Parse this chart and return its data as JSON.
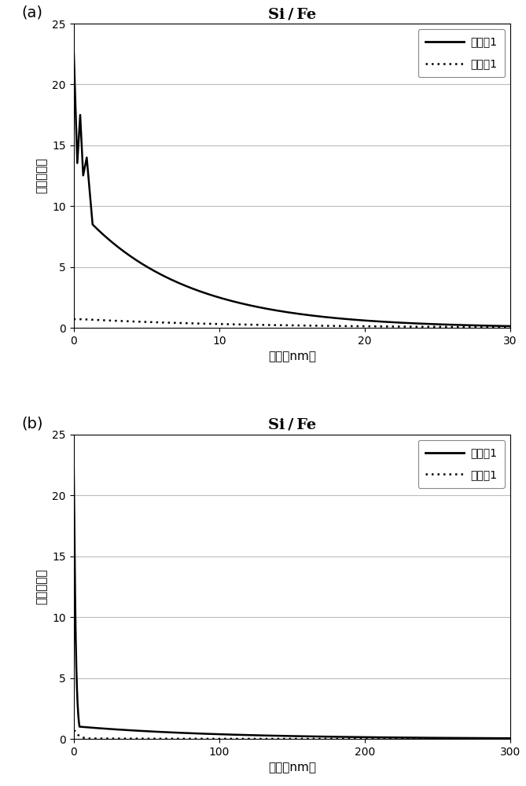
{
  "title": "Si / Fe",
  "ylabel": "原子浓度比",
  "xlabel": "深度（nm）",
  "legend_solid": "实施例1",
  "legend_dotted": "比较例1",
  "panel_a_label": "(a)",
  "panel_b_label": "(b)",
  "ylim": [
    0,
    25
  ],
  "yticks": [
    0,
    5,
    10,
    15,
    20,
    25
  ],
  "panel_a_xlim": [
    0,
    30
  ],
  "panel_a_xticks": [
    0,
    10,
    20,
    30
  ],
  "panel_b_xlim": [
    0,
    300
  ],
  "panel_b_xticks": [
    0,
    100,
    200,
    300
  ],
  "background_color": "#ffffff",
  "grid_color": "#bbbbbb",
  "line_color": "#000000"
}
